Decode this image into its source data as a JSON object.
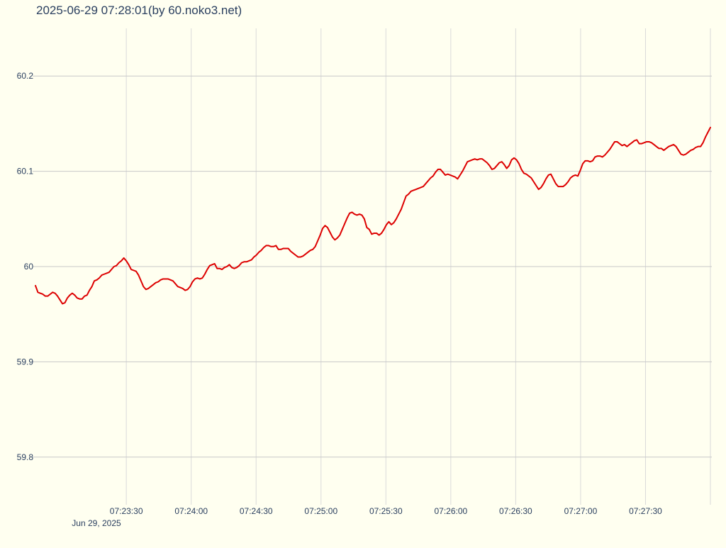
{
  "chart_data": {
    "type": "line",
    "title": "2025-06-29 07:28:01(by 60.noko3.net)",
    "xlabel": "",
    "ylabel": "",
    "x_start": "07:22:48",
    "x_end": "07:28:00",
    "xlim": [
      "07:22:48",
      "07:28:00"
    ],
    "ylim": [
      59.75,
      60.25
    ],
    "y_ticks": [
      "59.8",
      "59.9",
      "60",
      "60.1",
      "60.2"
    ],
    "y_tick_values": [
      59.8,
      59.9,
      60.0,
      60.1,
      60.2
    ],
    "x_ticks": [
      "07:23:30",
      "07:24:00",
      "07:24:30",
      "07:25:00",
      "07:25:30",
      "07:26:00",
      "07:26:30",
      "07:27:00",
      "07:27:30"
    ],
    "x_tick_date": "Jun 29, 2025",
    "grid": true,
    "line_color": "#dd0000",
    "background_color": "#fffff0",
    "series": [
      {
        "values": [
          59.98,
          59.973,
          59.972,
          59.971,
          59.969,
          59.969,
          59.971,
          59.973,
          59.972,
          59.969,
          59.965,
          59.961,
          59.962,
          59.967,
          59.97,
          59.972,
          59.97,
          59.967,
          59.966,
          59.966,
          59.969,
          59.97,
          59.975,
          59.979,
          59.985,
          59.986,
          59.988,
          59.991,
          59.992,
          59.993,
          59.994,
          59.997,
          60.0,
          60.001,
          60.004,
          60.006,
          60.009,
          60.006,
          60.002,
          59.997,
          59.996,
          59.995,
          59.991,
          59.985,
          59.979,
          59.976,
          59.977,
          59.979,
          59.981,
          59.983,
          59.984,
          59.986,
          59.987,
          59.987,
          59.987,
          59.986,
          59.985,
          59.982,
          59.979,
          59.978,
          59.977,
          59.975,
          59.976,
          59.979,
          59.984,
          59.987,
          59.988,
          59.987,
          59.988,
          59.992,
          59.997,
          60.001,
          60.002,
          60.003,
          59.998,
          59.998,
          59.997,
          59.999,
          60.0,
          60.002,
          59.999,
          59.998,
          59.999,
          60.001,
          60.004,
          60.005,
          60.005,
          60.006,
          60.007,
          60.01,
          60.012,
          60.015,
          60.017,
          60.02,
          60.022,
          60.022,
          60.021,
          60.021,
          60.022,
          60.018,
          60.018,
          60.019,
          60.019,
          60.019,
          60.016,
          60.014,
          60.012,
          60.01,
          60.01,
          60.011,
          60.013,
          60.015,
          60.017,
          60.018,
          60.021,
          60.027,
          60.033,
          60.04,
          60.043,
          60.041,
          60.036,
          60.031,
          60.028,
          60.03,
          60.033,
          60.039,
          60.045,
          60.051,
          60.056,
          60.057,
          60.055,
          60.054,
          60.055,
          60.054,
          60.05,
          60.041,
          60.039,
          60.034,
          60.035,
          60.035,
          60.033,
          60.035,
          60.039,
          60.044,
          60.047,
          60.044,
          60.046,
          60.05,
          60.055,
          60.06,
          60.067,
          60.074,
          60.076,
          60.079,
          60.08,
          60.081,
          60.082,
          60.083,
          60.084,
          60.087,
          60.09,
          60.093,
          60.095,
          60.099,
          60.102,
          60.102,
          60.099,
          60.096,
          60.097,
          60.096,
          60.095,
          60.094,
          60.092,
          60.096,
          60.1,
          60.105,
          60.11,
          60.111,
          60.112,
          60.113,
          60.112,
          60.113,
          60.113,
          60.111,
          60.109,
          60.106,
          60.102,
          60.103,
          60.106,
          60.109,
          60.11,
          60.107,
          60.103,
          60.106,
          60.112,
          60.114,
          60.112,
          60.108,
          60.102,
          60.098,
          60.097,
          60.095,
          60.093,
          60.089,
          60.085,
          60.081,
          60.083,
          60.087,
          60.092,
          60.096,
          60.097,
          60.092,
          60.087,
          60.084,
          60.084,
          60.084,
          60.086,
          60.089,
          60.093,
          60.095,
          60.096,
          60.095,
          60.101,
          60.108,
          60.111,
          60.111,
          60.11,
          60.111,
          60.115,
          60.116,
          60.116,
          60.115,
          60.117,
          60.12,
          60.123,
          60.127,
          60.131,
          60.131,
          60.129,
          60.127,
          60.128,
          60.126,
          60.128,
          60.13,
          60.132,
          60.133,
          60.129,
          60.129,
          60.13,
          60.131,
          60.131,
          60.13,
          60.128,
          60.126,
          60.124,
          60.124,
          60.122,
          60.124,
          60.126,
          60.127,
          60.128,
          60.126,
          60.122,
          60.118,
          60.117,
          60.118,
          60.12,
          60.122,
          60.123,
          60.125,
          60.126,
          60.126,
          60.13,
          60.136,
          60.141,
          60.146
        ]
      }
    ]
  }
}
